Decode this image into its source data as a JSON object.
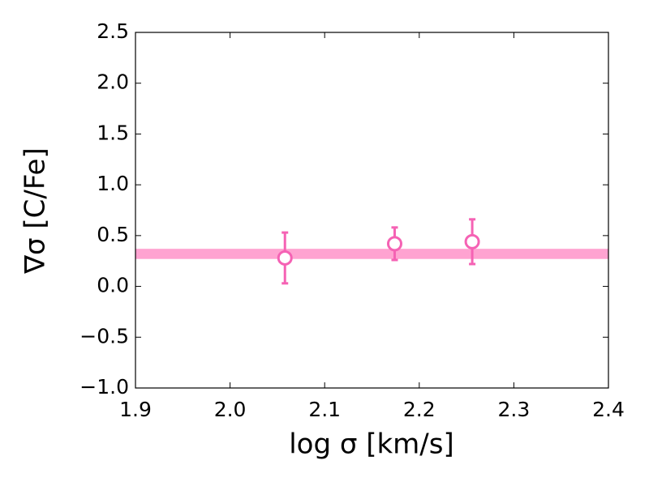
{
  "chart_data": {
    "type": "scatter",
    "xlabel": "log σ [km/s]",
    "ylabel": "∇σ [C/Fe]",
    "xlim": [
      1.9,
      2.4
    ],
    "ylim": [
      -1.0,
      2.5
    ],
    "xticks": [
      1.9,
      {
        "value": 2.0,
        "label": "2.0"
      },
      2.1,
      2.2,
      2.3,
      2.4
    ],
    "yticks": [
      {
        "value": -1.0,
        "label": "−1.0"
      },
      {
        "value": -0.5,
        "label": "−0.5"
      },
      {
        "value": 0.0,
        "label": "0.0"
      },
      0.5,
      {
        "value": 1.0,
        "label": "1.0"
      },
      1.5,
      {
        "value": 2.0,
        "label": "2.0"
      },
      2.5
    ],
    "band": [
      0.27,
      0.37
    ],
    "band_color": "#ffa3d1",
    "series": [
      {
        "color": "#f562b4",
        "x": [
          2.058,
          2.174,
          2.256
        ],
        "values": [
          0.28,
          0.42,
          0.44
        ],
        "errors": [
          0.25,
          0.16,
          0.22
        ]
      }
    ]
  }
}
